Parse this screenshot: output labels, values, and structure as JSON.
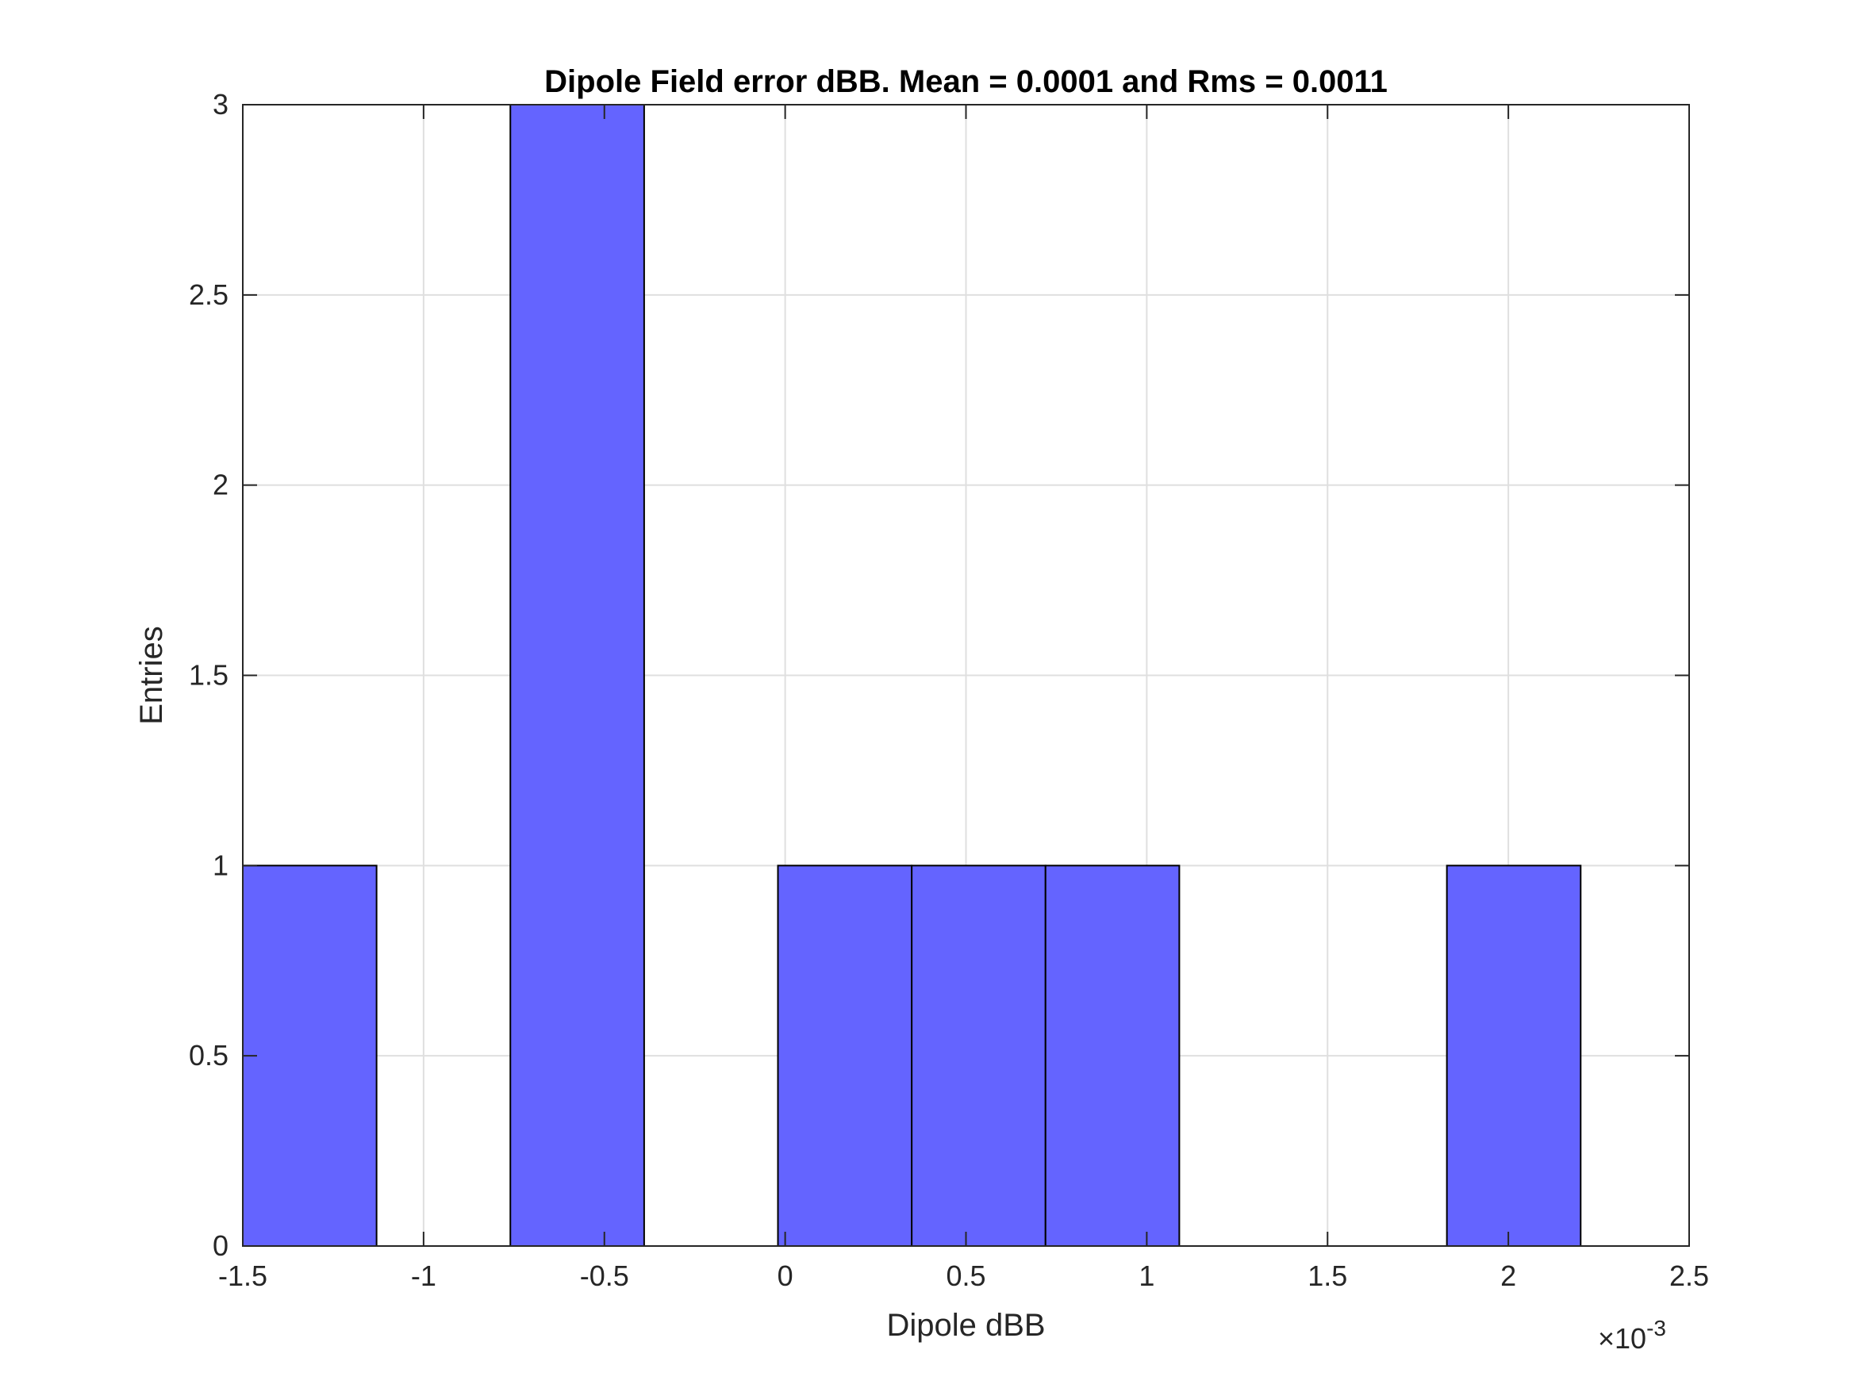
{
  "chart_data": {
    "type": "bar",
    "title": "Dipole Field error dBB. Mean = 0.0001 and Rms = 0.0011",
    "xlabel": "Dipole dBB",
    "ylabel": "Entries",
    "x_exponent_prefix": "×10",
    "x_exponent_power": "-3",
    "xlim": [
      -1.5,
      2.5
    ],
    "ylim": [
      0,
      3
    ],
    "x_ticks": [
      -1.5,
      -1,
      -0.5,
      0,
      0.5,
      1,
      1.5,
      2,
      2.5
    ],
    "x_tick_labels": [
      "-1.5",
      "-1",
      "-0.5",
      "0",
      "0.5",
      "1",
      "1.5",
      "2",
      "2.5"
    ],
    "y_ticks": [
      0,
      0.5,
      1,
      1.5,
      2,
      2.5,
      3
    ],
    "y_tick_labels": [
      "0",
      "0.5",
      "1",
      "1.5",
      "2",
      "2.5",
      "3"
    ],
    "grid": true,
    "bar_color": "#6464ff",
    "bar_edge_color": "#000000",
    "bins": [
      {
        "x0": -1.5,
        "x1": -1.13,
        "count": 1
      },
      {
        "x0": -0.76,
        "x1": -0.39,
        "count": 3
      },
      {
        "x0": -0.02,
        "x1": 0.35,
        "count": 1
      },
      {
        "x0": 0.35,
        "x1": 0.72,
        "count": 1
      },
      {
        "x0": 0.72,
        "x1": 1.09,
        "count": 1
      },
      {
        "x0": 1.83,
        "x1": 2.2,
        "count": 1
      }
    ]
  }
}
